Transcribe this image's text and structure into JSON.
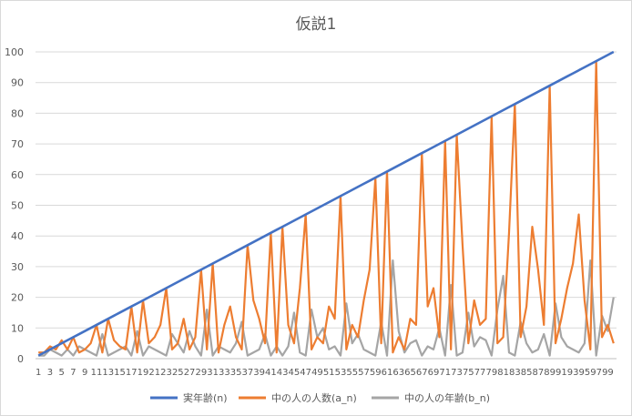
{
  "chart_data": {
    "type": "line",
    "title": "仮説1",
    "xlabel": "",
    "ylabel": "",
    "ylim": [
      0,
      100
    ],
    "yticks": [
      0,
      10,
      20,
      30,
      40,
      50,
      60,
      70,
      80,
      90,
      100
    ],
    "x": [
      1,
      2,
      3,
      4,
      5,
      6,
      7,
      8,
      9,
      10,
      11,
      12,
      13,
      14,
      15,
      16,
      17,
      18,
      19,
      20,
      21,
      22,
      23,
      24,
      25,
      26,
      27,
      28,
      29,
      30,
      31,
      32,
      33,
      34,
      35,
      36,
      37,
      38,
      39,
      40,
      41,
      42,
      43,
      44,
      45,
      46,
      47,
      48,
      49,
      50,
      51,
      52,
      53,
      54,
      55,
      56,
      57,
      58,
      59,
      60,
      61,
      62,
      63,
      64,
      65,
      66,
      67,
      68,
      69,
      70,
      71,
      72,
      73,
      74,
      75,
      76,
      77,
      78,
      79,
      80,
      81,
      82,
      83,
      84,
      85,
      86,
      87,
      88,
      89,
      90,
      91,
      92,
      93,
      94,
      95,
      96,
      97,
      98,
      99,
      100
    ],
    "xtick_labels": [
      "1",
      "3",
      "5",
      "7",
      "9",
      "11",
      "13",
      "15",
      "17",
      "19",
      "21",
      "23",
      "25",
      "27",
      "29",
      "31",
      "33",
      "35",
      "37",
      "39",
      "41",
      "43",
      "45",
      "47",
      "49",
      "51",
      "53",
      "55",
      "57",
      "59",
      "61",
      "63",
      "65",
      "67",
      "69",
      "71",
      "73",
      "75",
      "77",
      "79",
      "81",
      "83",
      "85",
      "87",
      "89",
      "91",
      "93",
      "95",
      "97",
      "99"
    ],
    "grid": true,
    "legend_position": "bottom",
    "series": [
      {
        "name": "実年齢(n)",
        "color": "#4472c4",
        "values": [
          1,
          2,
          3,
          4,
          5,
          6,
          7,
          8,
          9,
          10,
          11,
          12,
          13,
          14,
          15,
          16,
          17,
          18,
          19,
          20,
          21,
          22,
          23,
          24,
          25,
          26,
          27,
          28,
          29,
          30,
          31,
          32,
          33,
          34,
          35,
          36,
          37,
          38,
          39,
          40,
          41,
          42,
          43,
          44,
          45,
          46,
          47,
          48,
          49,
          50,
          51,
          52,
          53,
          54,
          55,
          56,
          57,
          58,
          59,
          60,
          61,
          62,
          63,
          64,
          65,
          66,
          67,
          68,
          69,
          70,
          71,
          72,
          73,
          74,
          75,
          76,
          77,
          78,
          79,
          80,
          81,
          82,
          83,
          84,
          85,
          86,
          87,
          88,
          89,
          90,
          91,
          92,
          93,
          94,
          95,
          96,
          97,
          98,
          99,
          100
        ]
      },
      {
        "name": "中の人の人数(a_n)",
        "color": "#ed7d31",
        "values": [
          2,
          2,
          4,
          3,
          6,
          3,
          7,
          2,
          3,
          5,
          11,
          2,
          13,
          6,
          4,
          3,
          17,
          2,
          19,
          5,
          7,
          11,
          23,
          3,
          5,
          13,
          3,
          7,
          29,
          3,
          31,
          2,
          11,
          17,
          7,
          3,
          37,
          19,
          13,
          5,
          41,
          2,
          43,
          11,
          5,
          23,
          47,
          3,
          7,
          5,
          17,
          13,
          53,
          3,
          11,
          7,
          19,
          29,
          59,
          5,
          61,
          2,
          7,
          3,
          13,
          11,
          67,
          17,
          23,
          7,
          71,
          3,
          73,
          37,
          5,
          19,
          11,
          13,
          79,
          5,
          7,
          41,
          83,
          7,
          17,
          43,
          29,
          11,
          89,
          5,
          13,
          23,
          31,
          47,
          19,
          3,
          97,
          7,
          11,
          5
        ]
      },
      {
        "name": "中の人の年齢(b_n)",
        "color": "#a5a5a5",
        "values": [
          1,
          1,
          3,
          2,
          1,
          3,
          1,
          4,
          3,
          2,
          1,
          8,
          1,
          2,
          3,
          4,
          1,
          9,
          1,
          4,
          3,
          2,
          1,
          8,
          5,
          2,
          9,
          4,
          1,
          16,
          1,
          4,
          3,
          2,
          5,
          12,
          1,
          2,
          3,
          8,
          1,
          4,
          1,
          4,
          15,
          2,
          1,
          16,
          7,
          10,
          3,
          4,
          1,
          18,
          5,
          8,
          3,
          2,
          1,
          12,
          1,
          32,
          9,
          2,
          5,
          6,
          1,
          4,
          3,
          10,
          1,
          24,
          1,
          2,
          15,
          4,
          7,
          6,
          1,
          16,
          27,
          2,
          1,
          12,
          5,
          2,
          3,
          8,
          1,
          18,
          7,
          4,
          3,
          2,
          5,
          32,
          1,
          14,
          9,
          20
        ]
      }
    ]
  }
}
